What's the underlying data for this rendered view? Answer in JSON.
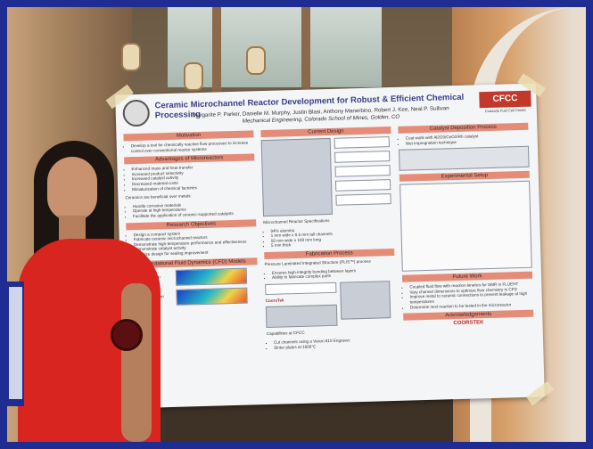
{
  "poster": {
    "title": "Ceramic Microchannel Reactor Development for Robust & Efficient Chemical Processing",
    "authors": "Margarite P. Parker, Danielle M. Murphy, Justin Blasi, Anthony Manerbino, Robert J. Kee, Neal P. Sullivan",
    "affiliation": "Mechanical Engineering, Colorado School of Mines, Golden, CO",
    "cfcc_logo": "CFCC",
    "cfcc_sub": "Colorado Fuel Cell Center",
    "col1": {
      "motivation_header": "Motivation",
      "motivation_text": "Develop a tool for chemically reactive flow processes to increase control over conventional reactor systems",
      "advantages_header": "Advantages of Microreactors",
      "advantages": [
        "Enhanced mass and heat transfer",
        "Increased product selectivity",
        "Increased catalyst activity",
        "Decreased material costs",
        "Miniaturization of chemical factories"
      ],
      "ceramics_text": "Ceramics are beneficial over metals:",
      "ceramics": [
        "Handle corrosive materials",
        "Operate at high temperatures",
        "Facilitate the application of ceramic-supported catalysts"
      ],
      "objectives_header": "Research Objectives",
      "objectives": [
        "Design a compact system",
        "Fabricate ceramic microchannel reactors",
        "Demonstrate high-temperature performance and effectiveness",
        "Demonstrate catalyst activity",
        "Optimize design for sealing improvement"
      ],
      "cfd_header": "Computational Fluid Dynamics (CFD) Models",
      "cfd_items": [
        "Geometrics",
        "Pressure drop",
        "Stress",
        "Temperature",
        "Velocity",
        "Heat exchanger effectiveness"
      ]
    },
    "col2": {
      "design_header": "Current Design",
      "specs_title": "Microchannel Reactor Specifications",
      "specs": [
        "94% alumina",
        "1 mm wide x 0.5 mm tall channels",
        "50 mm wide x 100 mm long",
        "5 mm thick"
      ],
      "fab_header": "Fabrication Process",
      "fab_text": "Pressure Laminated Integrated Structure (PLIS™) process",
      "fab_items": [
        "Ensures high-integrity bonding between layers",
        "Ability to fabricate complex parts"
      ],
      "coorstek": "CoorsTek",
      "capabilities_title": "Capabilities at CFCC",
      "capabilities": [
        "Cut channels using a Vision 810 Engraver",
        "Sinter plates at 1600°C"
      ]
    },
    "col3": {
      "catalyst_header": "Catalyst Deposition Process",
      "catalyst_items": [
        "Coat walls with Al2O3/CeO2/Rh catalyst",
        "Wet impregnation technique"
      ],
      "setup_header": "Experimental Setup",
      "future_header": "Future Work",
      "future_items": [
        "Coupled fluid flow with reaction kinetics for SMR in FLUENT",
        "Vary channel dimensions to optimize flow chemistry in CFD",
        "Improve metal to ceramic connections to prevent leakage at high temperatures",
        "Determine next reaction to be tested in the microreactor"
      ],
      "ack_header": "Acknowledgements",
      "ack_logo": "COORSTEK"
    }
  }
}
